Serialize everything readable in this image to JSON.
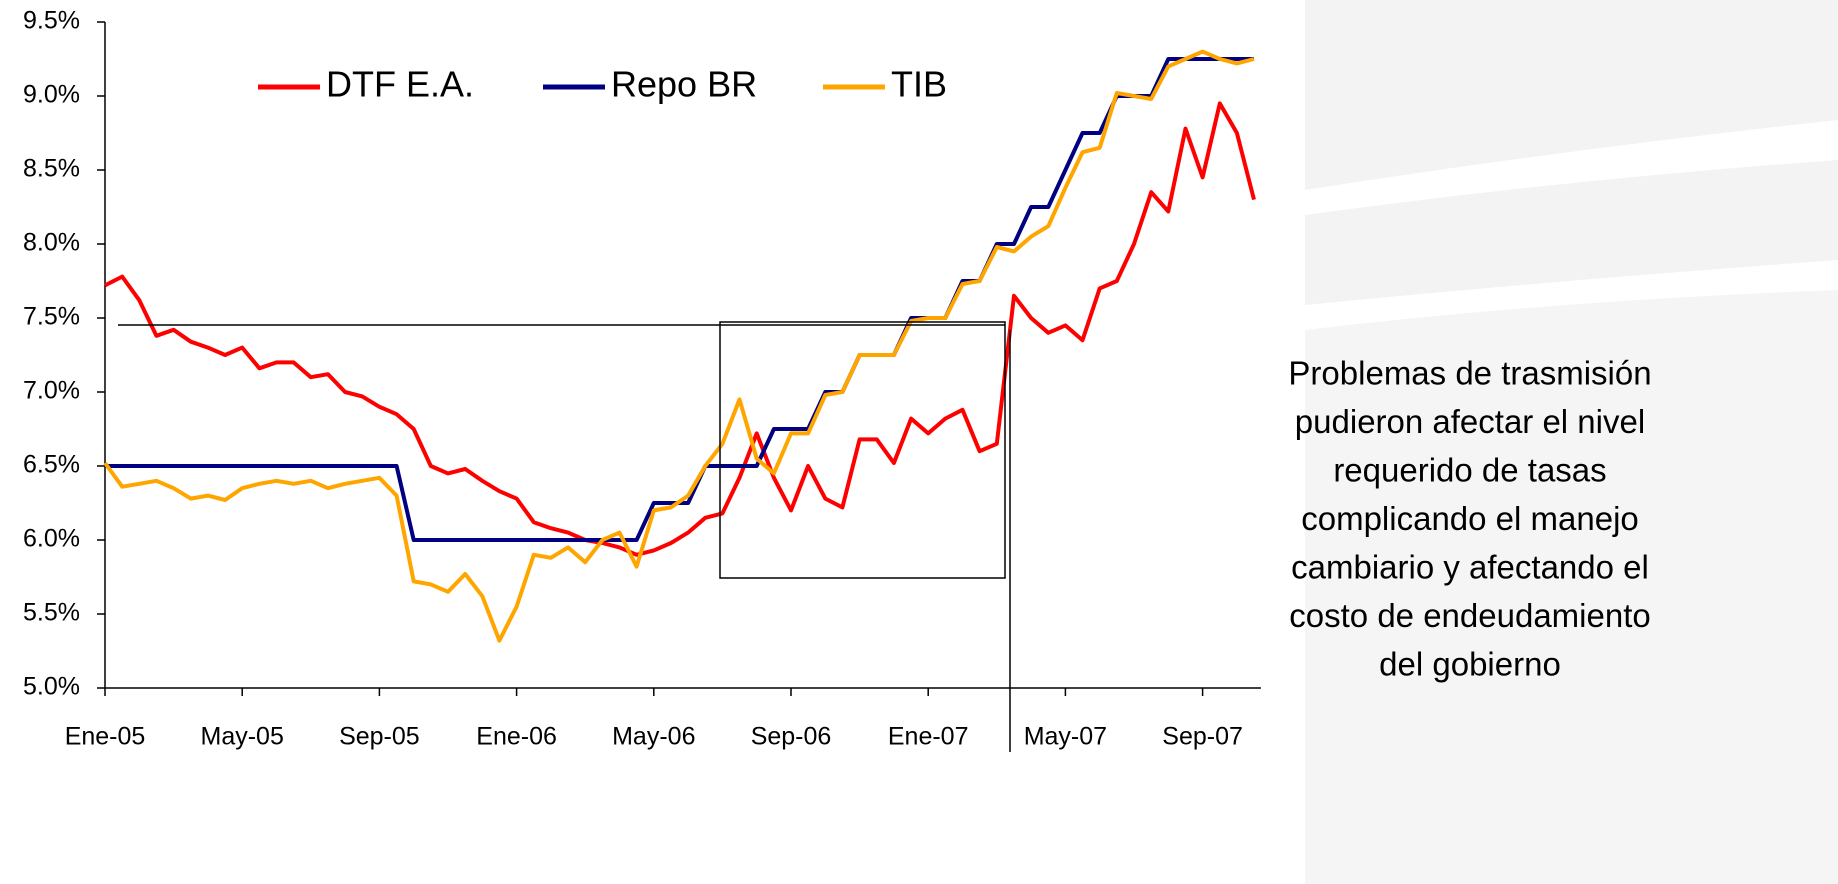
{
  "chart_data": {
    "type": "line",
    "x": [
      0,
      0.5,
      1,
      1.5,
      2,
      2.5,
      3,
      3.5,
      4,
      4.5,
      5,
      5.5,
      6,
      6.5,
      7,
      7.5,
      8,
      8.5,
      9,
      9.5,
      10,
      10.5,
      11,
      11.5,
      12,
      12.5,
      13,
      13.5,
      14,
      14.5,
      15,
      15.5,
      16,
      16.5,
      17,
      17.5,
      18,
      18.5,
      19,
      19.5,
      20,
      20.5,
      21,
      21.5,
      22,
      22.5,
      23,
      23.5,
      24,
      24.5,
      25,
      25.5,
      26,
      26.5,
      27,
      27.5,
      28,
      28.5,
      29,
      29.5,
      30,
      30.5,
      31,
      31.5,
      32,
      32.5,
      33,
      33.5
    ],
    "series": [
      {
        "name": "DTF E.A.",
        "color": "#ff0000",
        "values": [
          7.72,
          7.78,
          7.62,
          7.38,
          7.42,
          7.34,
          7.3,
          7.25,
          7.3,
          7.16,
          7.2,
          7.2,
          7.1,
          7.12,
          7.0,
          6.97,
          6.9,
          6.85,
          6.75,
          6.5,
          6.45,
          6.48,
          6.4,
          6.33,
          6.28,
          6.12,
          6.08,
          6.05,
          6.0,
          5.98,
          5.95,
          5.9,
          5.93,
          5.98,
          6.05,
          6.15,
          6.18,
          6.42,
          6.72,
          6.42,
          6.2,
          6.5,
          6.28,
          6.22,
          6.68,
          6.68,
          6.52,
          6.82,
          6.72,
          6.82,
          6.88,
          6.6,
          6.65,
          7.65,
          7.5,
          7.4,
          7.45,
          7.35,
          7.7,
          7.75,
          8.0,
          8.35,
          8.22,
          8.78,
          8.45,
          8.95,
          8.75,
          8.3
        ]
      },
      {
        "name": "Repo BR",
        "color": "#000080",
        "values": [
          6.5,
          6.5,
          6.5,
          6.5,
          6.5,
          6.5,
          6.5,
          6.5,
          6.5,
          6.5,
          6.5,
          6.5,
          6.5,
          6.5,
          6.5,
          6.5,
          6.5,
          6.5,
          6.0,
          6.0,
          6.0,
          6.0,
          6.0,
          6.0,
          6.0,
          6.0,
          6.0,
          6.0,
          6.0,
          6.0,
          6.0,
          6.0,
          6.25,
          6.25,
          6.25,
          6.5,
          6.5,
          6.5,
          6.5,
          6.75,
          6.75,
          6.75,
          7.0,
          7.0,
          7.25,
          7.25,
          7.25,
          7.5,
          7.5,
          7.5,
          7.75,
          7.75,
          8.0,
          8.0,
          8.25,
          8.25,
          8.5,
          8.75,
          8.75,
          9.0,
          9.0,
          9.0,
          9.25,
          9.25,
          9.25,
          9.25,
          9.25,
          9.25
        ]
      },
      {
        "name": "TIB",
        "color": "#ffa500",
        "values": [
          6.52,
          6.36,
          6.38,
          6.4,
          6.35,
          6.28,
          6.3,
          6.27,
          6.35,
          6.38,
          6.4,
          6.38,
          6.4,
          6.35,
          6.38,
          6.4,
          6.42,
          6.3,
          5.72,
          5.7,
          5.65,
          5.77,
          5.62,
          5.32,
          5.55,
          5.9,
          5.88,
          5.95,
          5.85,
          6.0,
          6.05,
          5.82,
          6.2,
          6.22,
          6.3,
          6.5,
          6.65,
          6.95,
          6.55,
          6.45,
          6.72,
          6.72,
          6.98,
          7.0,
          7.25,
          7.25,
          7.25,
          7.48,
          7.5,
          7.5,
          7.73,
          7.75,
          7.98,
          7.95,
          8.05,
          8.12,
          8.38,
          8.62,
          8.65,
          9.02,
          9.0,
          8.98,
          9.2,
          9.25,
          9.3,
          9.25,
          9.22,
          9.25
        ]
      }
    ],
    "xlim": [
      0,
      33.7
    ],
    "xticks": [
      {
        "value": 0,
        "label": "Ene-05"
      },
      {
        "value": 4,
        "label": "May-05"
      },
      {
        "value": 8,
        "label": "Sep-05"
      },
      {
        "value": 12,
        "label": "Ene-06"
      },
      {
        "value": 16,
        "label": "May-06"
      },
      {
        "value": 20,
        "label": "Sep-06"
      },
      {
        "value": 24,
        "label": "Ene-07"
      },
      {
        "value": 28,
        "label": "May-07"
      },
      {
        "value": 32,
        "label": "Sep-07"
      }
    ],
    "ylim": [
      5.0,
      9.5
    ],
    "yticks": [
      {
        "value": 5.0,
        "label": "5.0%"
      },
      {
        "value": 5.5,
        "label": "5.5%"
      },
      {
        "value": 6.0,
        "label": "6.0%"
      },
      {
        "value": 6.5,
        "label": "6.5%"
      },
      {
        "value": 7.0,
        "label": "7.0%"
      },
      {
        "value": 7.5,
        "label": "7.5%"
      },
      {
        "value": 8.0,
        "label": "8.0%"
      },
      {
        "value": 8.5,
        "label": "8.5%"
      },
      {
        "value": 9.0,
        "label": "9.0%"
      },
      {
        "value": 9.5,
        "label": "9.5%"
      }
    ],
    "annotation": [
      "Problemas de trasmisión",
      "pudieron afectar el nivel",
      "requerido de tasas",
      "complicando el manejo",
      "cambiario y afectando el",
      "costo de endeudamiento",
      "del gobierno"
    ]
  }
}
